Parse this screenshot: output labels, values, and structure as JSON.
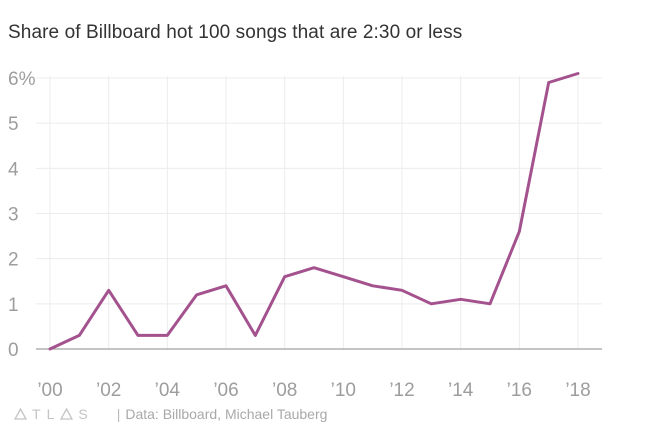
{
  "title": "Share of Billboard hot 100 songs that are 2:30 or less",
  "source": "Data: Billboard, Michael Tauberg",
  "branding": {
    "logo_letters": [
      "T",
      "L",
      "S"
    ],
    "logo_icon": "triangle-icon"
  },
  "colors": {
    "line": "#a3528e",
    "grid": "#ececec",
    "axis": "#8a8a8a",
    "tick_text": "#9d9d9d"
  },
  "chart_data": {
    "type": "line",
    "title": "Share of Billboard hot 100 songs that are 2:30 or less",
    "xlabel": "",
    "ylabel": "",
    "x": [
      2000,
      2001,
      2002,
      2003,
      2004,
      2005,
      2006,
      2007,
      2008,
      2009,
      2010,
      2011,
      2012,
      2013,
      2014,
      2015,
      2016,
      2017,
      2018
    ],
    "series": [
      {
        "values": [
          0,
          0.3,
          1.3,
          0.3,
          0.3,
          1.2,
          1.4,
          0.3,
          1.6,
          1.8,
          1.6,
          1.4,
          1.3,
          1.0,
          1.1,
          1.0,
          2.6,
          5.9,
          6.1
        ]
      }
    ],
    "xlim": [
      1999.5,
      2018.8
    ],
    "ylim": [
      0,
      6
    ],
    "x_ticks": [
      2000,
      2002,
      2004,
      2006,
      2008,
      2010,
      2012,
      2014,
      2016,
      2018
    ],
    "x_tick_labels": [
      "’00",
      "’02",
      "’04",
      "’06",
      "’08",
      "’10",
      "’12",
      "’14",
      "’16",
      "’18"
    ],
    "y_ticks": [
      0,
      1,
      2,
      3,
      4,
      5,
      6
    ],
    "y_tick_labels": [
      "0",
      "1",
      "2",
      "3",
      "4",
      "5",
      "6%"
    ],
    "grid": true,
    "legend": "none"
  }
}
